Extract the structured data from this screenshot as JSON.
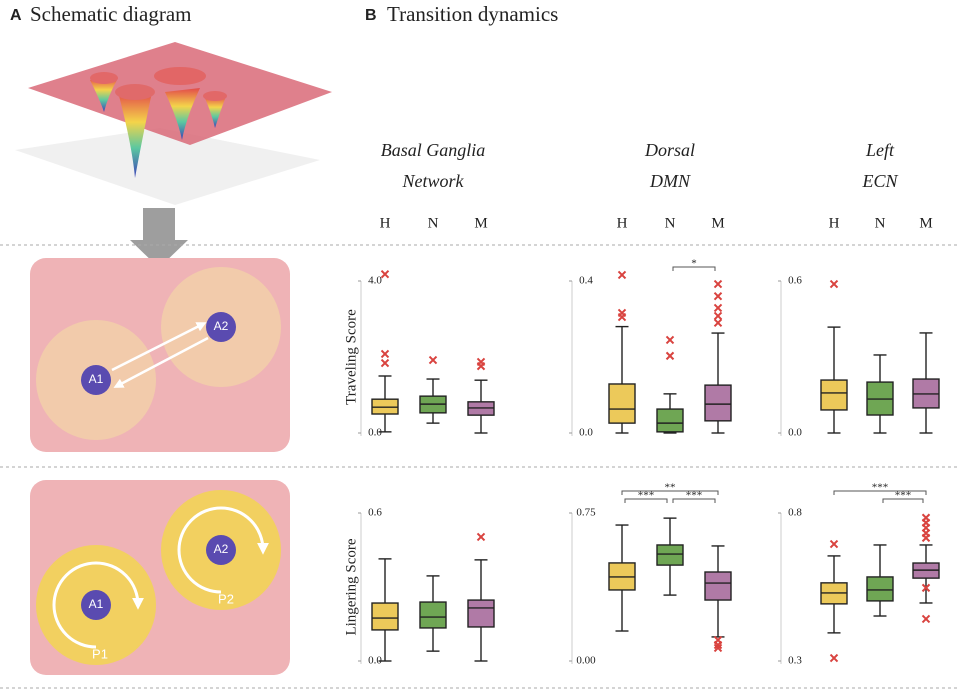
{
  "panel_a": {
    "letter": "A",
    "title": "Schematic diagram",
    "traveling_nodes": [
      "A1",
      "A2"
    ],
    "lingering_nodes": [
      "A1",
      "A2"
    ],
    "lingering_paths": [
      "P1",
      "P2"
    ]
  },
  "panel_b": {
    "letter": "B",
    "title": "Transition dynamics"
  },
  "columns": [
    {
      "title": [
        "Basal Ganglia",
        "Network"
      ]
    },
    {
      "title": [
        "Dorsal",
        "DMN"
      ]
    },
    {
      "title": [
        "Left",
        "ECN"
      ]
    }
  ],
  "groups": [
    {
      "name": "H",
      "color": "#ecc95a"
    },
    {
      "name": "N",
      "color": "#6fa654"
    },
    {
      "name": "M",
      "color": "#b07aa6"
    }
  ],
  "outlier_color": "#d9433f",
  "chart_data": [
    {
      "type": "box",
      "ylabel": "Traveling Score",
      "ylim": [
        0,
        4
      ],
      "yticks": [
        {
          "value": 0,
          "label": "0.0"
        },
        {
          "value": 4,
          "label": "4.0"
        }
      ],
      "boxes": [
        {
          "whisker_low": 0.03,
          "q1": 0.5,
          "median": 0.68,
          "q3": 0.89,
          "whisker_high": 1.5,
          "outliers": [
            1.84,
            2.08,
            4.18
          ]
        },
        {
          "whisker_low": 0.26,
          "q1": 0.53,
          "median": 0.76,
          "q3": 0.97,
          "whisker_high": 1.42,
          "outliers": [
            1.92
          ]
        },
        {
          "whisker_low": 0.0,
          "q1": 0.47,
          "median": 0.66,
          "q3": 0.82,
          "whisker_high": 1.39,
          "outliers": [
            1.76,
            1.87
          ]
        }
      ],
      "annotations": []
    },
    {
      "type": "box",
      "ylim": [
        0,
        0.4
      ],
      "yticks": [
        {
          "value": 0,
          "label": "0.0"
        },
        0.4
      ],
      "boxes": [
        {
          "whisker_low": 0.0,
          "q1": 0.026,
          "median": 0.063,
          "q3": 0.129,
          "whisker_high": 0.28,
          "outliers": [
            0.305,
            0.316,
            0.416
          ]
        },
        {
          "whisker_low": 0.0,
          "q1": 0.003,
          "median": 0.026,
          "q3": 0.063,
          "whisker_high": 0.103,
          "outliers": [
            0.203,
            0.245
          ]
        },
        {
          "whisker_low": 0.0,
          "q1": 0.032,
          "median": 0.076,
          "q3": 0.126,
          "whisker_high": 0.263,
          "outliers": [
            0.29,
            0.308,
            0.329,
            0.36,
            0.392
          ]
        }
      ],
      "annotations": [
        {
          "text": "*",
          "from": 1,
          "to": 2
        }
      ]
    },
    {
      "type": "box",
      "ylim": [
        0,
        0.6
      ],
      "yticks": [
        {
          "value": 0,
          "label": "0.0"
        },
        0.6
      ],
      "boxes": [
        {
          "whisker_low": 0.0,
          "q1": 0.091,
          "median": 0.158,
          "q3": 0.209,
          "whisker_high": 0.418,
          "outliers": [
            0.588
          ]
        },
        {
          "whisker_low": 0.0,
          "q1": 0.071,
          "median": 0.134,
          "q3": 0.201,
          "whisker_high": 0.308,
          "outliers": []
        },
        {
          "whisker_low": 0.0,
          "q1": 0.099,
          "median": 0.154,
          "q3": 0.213,
          "whisker_high": 0.395,
          "outliers": []
        }
      ],
      "annotations": []
    },
    {
      "type": "box",
      "ylabel": "Lingering Score",
      "ylim": [
        0,
        0.6
      ],
      "yticks": [
        {
          "value": 0,
          "label": "0.0"
        },
        0.6
      ],
      "boxes": [
        {
          "whisker_low": 0.0,
          "q1": 0.126,
          "median": 0.174,
          "q3": 0.235,
          "whisker_high": 0.414,
          "outliers": []
        },
        {
          "whisker_low": 0.04,
          "q1": 0.134,
          "median": 0.178,
          "q3": 0.239,
          "whisker_high": 0.345,
          "outliers": []
        },
        {
          "whisker_low": 0.0,
          "q1": 0.138,
          "median": 0.215,
          "q3": 0.247,
          "whisker_high": 0.41,
          "outliers": [
            0.503
          ]
        }
      ],
      "annotations": []
    },
    {
      "type": "box",
      "ylim": [
        0,
        0.75
      ],
      "yticks": [
        {
          "value": 0,
          "label": "0.00"
        },
        0.75
      ],
      "boxes": [
        {
          "whisker_low": 0.152,
          "q1": 0.36,
          "median": 0.426,
          "q3": 0.497,
          "whisker_high": 0.689,
          "outliers": []
        },
        {
          "whisker_low": 0.334,
          "q1": 0.486,
          "median": 0.542,
          "q3": 0.588,
          "whisker_high": 0.724,
          "outliers": []
        },
        {
          "whisker_low": 0.122,
          "q1": 0.309,
          "median": 0.395,
          "q3": 0.451,
          "whisker_high": 0.583,
          "outliers": [
            0.066,
            0.081,
            0.106
          ]
        }
      ],
      "annotations": [
        {
          "text": "***",
          "from": 0,
          "to": 1
        },
        {
          "text": "***",
          "from": 1,
          "to": 2
        },
        {
          "text": "**",
          "from": 0,
          "to": 2
        }
      ]
    },
    {
      "type": "box",
      "ylim": [
        0.3,
        0.8
      ],
      "yticks": [
        0.3,
        0.8
      ],
      "boxes": [
        {
          "whisker_low": 0.395,
          "q1": 0.493,
          "median": 0.53,
          "q3": 0.564,
          "whisker_high": 0.655,
          "outliers": [
            0.31,
            0.695
          ]
        },
        {
          "whisker_low": 0.452,
          "q1": 0.503,
          "median": 0.54,
          "q3": 0.584,
          "whisker_high": 0.692,
          "outliers": []
        },
        {
          "whisker_low": 0.496,
          "q1": 0.58,
          "median": 0.607,
          "q3": 0.631,
          "whisker_high": 0.692,
          "outliers": [
            0.442,
            0.547,
            0.716,
            0.732,
            0.75,
            0.767,
            0.784
          ]
        }
      ],
      "annotations": [
        {
          "text": "***",
          "from": 1,
          "to": 2
        },
        {
          "text": "***",
          "from": 0,
          "to": 2
        }
      ]
    }
  ]
}
